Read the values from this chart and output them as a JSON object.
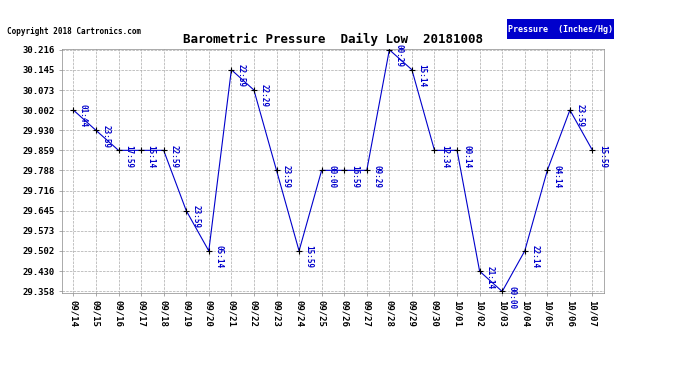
{
  "title": "Barometric Pressure  Daily Low  20181008",
  "copyright": "Copyright 2018 Cartronics.com",
  "legend_label": "Pressure  (Inches/Hg)",
  "x_labels": [
    "09/14",
    "09/15",
    "09/16",
    "09/17",
    "09/18",
    "09/19",
    "09/20",
    "09/21",
    "09/22",
    "09/23",
    "09/24",
    "09/25",
    "09/26",
    "09/27",
    "09/28",
    "09/29",
    "09/30",
    "10/01",
    "10/02",
    "10/03",
    "10/04",
    "10/05",
    "10/06",
    "10/07"
  ],
  "y_values": [
    30.002,
    29.93,
    29.859,
    29.859,
    29.859,
    29.645,
    29.502,
    30.145,
    30.073,
    29.788,
    29.502,
    29.788,
    29.788,
    29.788,
    30.216,
    30.145,
    29.859,
    29.859,
    29.43,
    29.358,
    29.502,
    29.788,
    30.002,
    29.859
  ],
  "point_labels": [
    "01:44",
    "23:59",
    "17:59",
    "15:14",
    "22:59",
    "23:59",
    "05:14",
    "22:59",
    "22:29",
    "23:59",
    "15:59",
    "00:00",
    "16:59",
    "09:29",
    "00:29",
    "15:14",
    "12:34",
    "00:14",
    "21:14",
    "00:00",
    "22:14",
    "04:14",
    "23:59",
    "15:59"
  ],
  "y_ticks": [
    29.358,
    29.43,
    29.502,
    29.573,
    29.645,
    29.716,
    29.788,
    29.859,
    29.93,
    30.002,
    30.073,
    30.145,
    30.216
  ],
  "line_color": "#0000cc",
  "marker_color": "#000000",
  "bg_color": "#ffffff",
  "grid_color": "#aaaaaa",
  "label_color": "#0000cc",
  "title_color": "#000000",
  "legend_bg": "#0000cc",
  "legend_text": "#ffffff",
  "y_min": 29.358,
  "y_max": 30.216
}
